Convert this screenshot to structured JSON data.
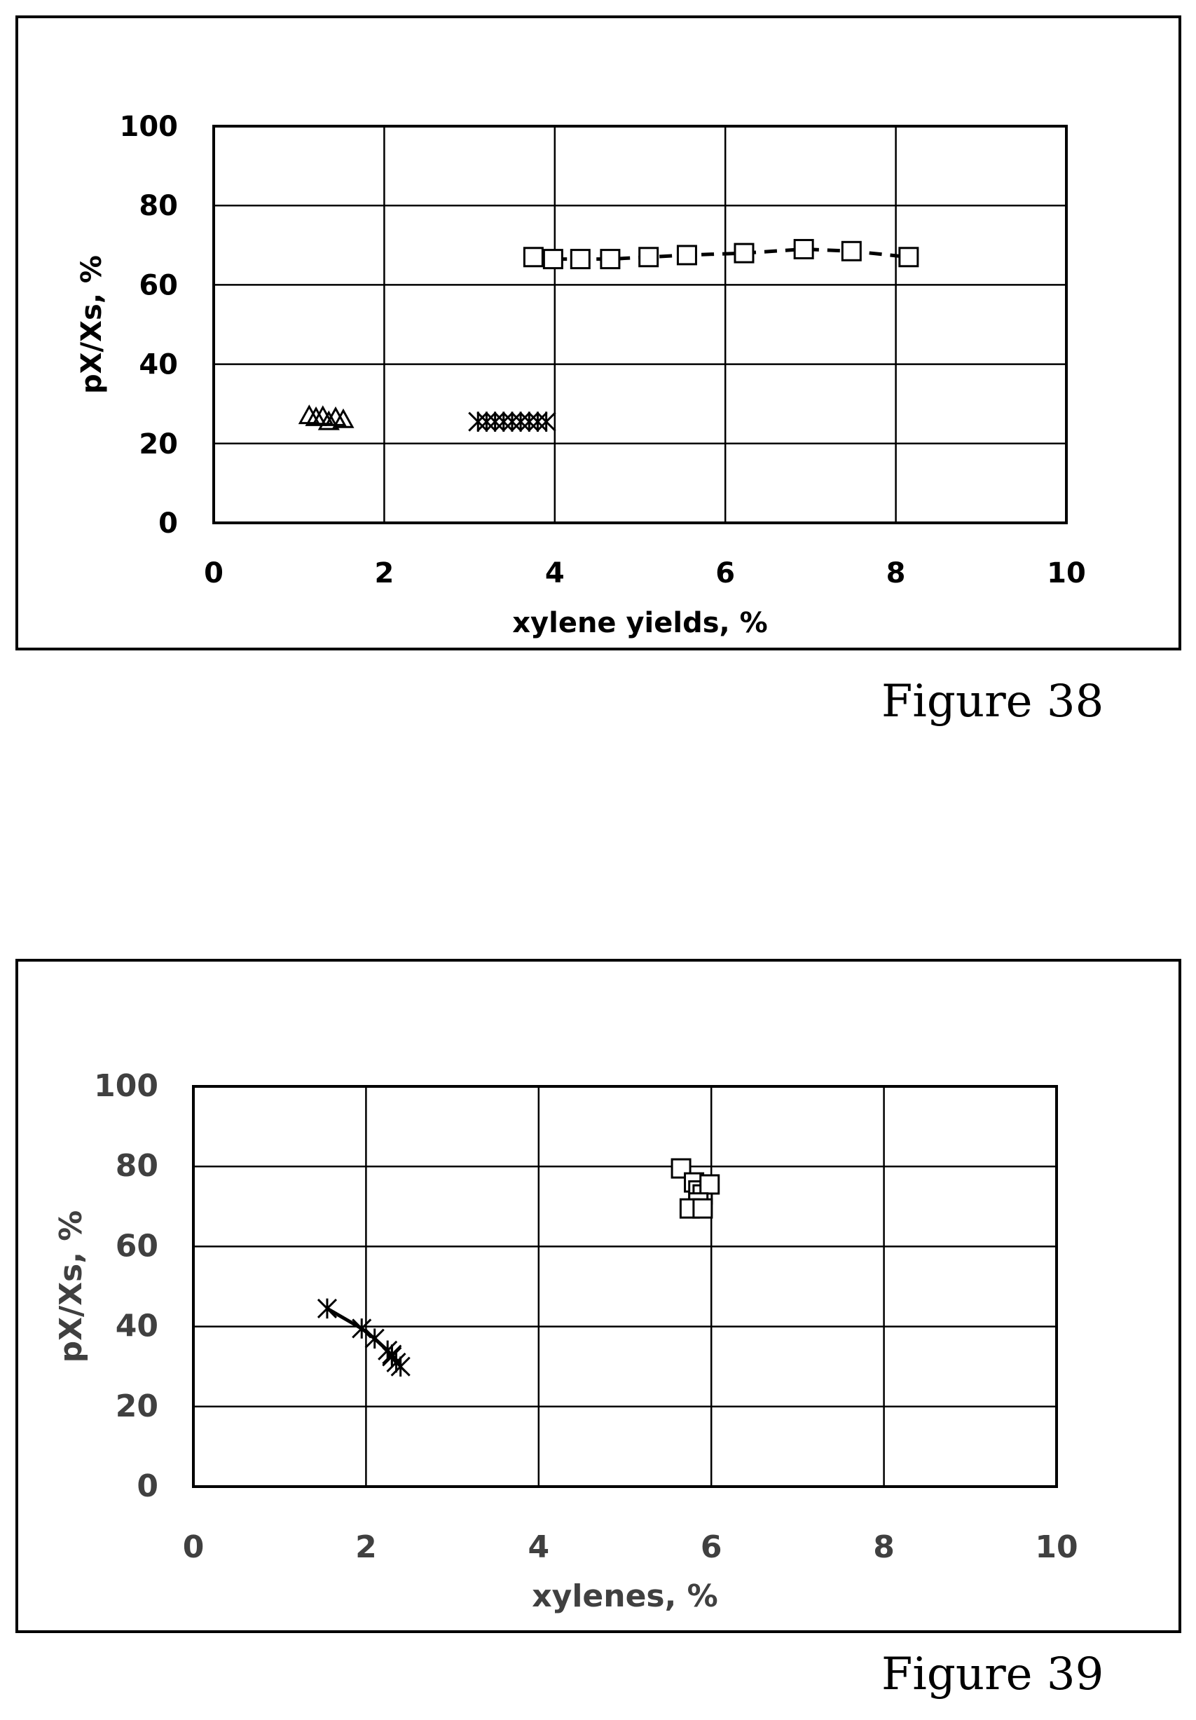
{
  "chart_data": [
    {
      "type": "scatter",
      "title": "",
      "xlabel": "xylene yields, %",
      "ylabel": "pX/Xs, %",
      "xlim": [
        0,
        10
      ],
      "ylim": [
        0,
        100
      ],
      "xticks": [
        "0",
        "2",
        "4",
        "6",
        "8",
        "10"
      ],
      "yticks": [
        "0",
        "20",
        "40",
        "60",
        "80",
        "100"
      ],
      "grid": true,
      "legend": "none",
      "series": [
        {
          "marker": "triangle",
          "line": "none",
          "x": [
            1.12,
            1.2,
            1.28,
            1.35,
            1.43,
            1.52
          ],
          "y": [
            27,
            26.5,
            26.8,
            25.5,
            26.5,
            26
          ]
        },
        {
          "marker": "star",
          "line": "none",
          "x": [
            3.1,
            3.2,
            3.3,
            3.4,
            3.5,
            3.6,
            3.7,
            3.8,
            3.9
          ],
          "y": [
            25.5,
            25.5,
            25.5,
            25.5,
            25.5,
            25.5,
            25.5,
            25.5,
            25.5
          ]
        },
        {
          "marker": "square",
          "line": "dashed",
          "x": [
            3.75,
            3.98,
            4.3,
            4.65,
            5.1,
            5.55,
            6.22,
            6.92,
            7.48,
            8.15
          ],
          "y": [
            67,
            66.5,
            66.5,
            66.5,
            67,
            67.5,
            68,
            69,
            68.5,
            67
          ]
        }
      ]
    },
    {
      "type": "scatter",
      "title": "",
      "xlabel": "xylenes, %",
      "ylabel": "pX/Xs, %",
      "xlim": [
        0,
        10
      ],
      "ylim": [
        0,
        100
      ],
      "xticks": [
        "0",
        "2",
        "4",
        "6",
        "8",
        "10"
      ],
      "yticks": [
        "0",
        "20",
        "40",
        "60",
        "80",
        "100"
      ],
      "grid": true,
      "legend": "none",
      "series": [
        {
          "marker": "square",
          "line": "solid",
          "x": [
            5.65,
            5.8,
            5.85,
            5.9,
            5.98,
            5.85,
            5.75,
            5.9
          ],
          "y": [
            79.5,
            76,
            74,
            73,
            75.5,
            71,
            69.5,
            69.5
          ]
        },
        {
          "marker": "star",
          "line": "solid",
          "x": [
            1.55,
            1.95,
            2.1,
            2.25,
            2.3,
            2.35,
            2.3,
            2.4
          ],
          "y": [
            44.5,
            39.5,
            37,
            34,
            32.5,
            31,
            33,
            30
          ]
        }
      ]
    }
  ],
  "captions": {
    "fig1": "Figure 38",
    "fig2": "Figure 39"
  }
}
